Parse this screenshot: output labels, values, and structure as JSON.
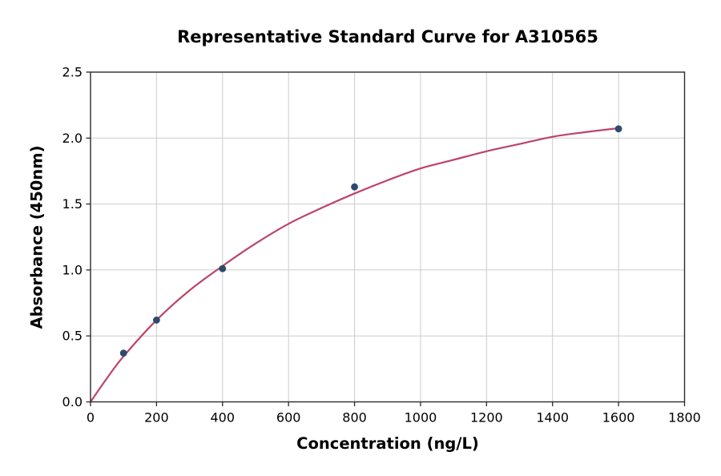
{
  "chart_data": {
    "type": "scatter",
    "title": "Representative Standard Curve for A310565",
    "xlabel": "Concentration (ng/L)",
    "ylabel": "Absorbance (450nm)",
    "xlim": [
      0,
      1800
    ],
    "ylim": [
      0,
      2.5
    ],
    "x_ticks": [
      0,
      200,
      400,
      600,
      800,
      1000,
      1200,
      1400,
      1600,
      1800
    ],
    "y_ticks": [
      0,
      0.5,
      1,
      1.5,
      2,
      2.5
    ],
    "y_tick_labels": [
      "0.0",
      "0.5",
      "1.0",
      "1.5",
      "2.0",
      "2.5"
    ],
    "grid": true,
    "legend": false,
    "series": [
      {
        "name": "standard-points",
        "type": "scatter",
        "color": "#2d4a6d",
        "points": [
          {
            "x": 100,
            "y": 0.37
          },
          {
            "x": 200,
            "y": 0.62
          },
          {
            "x": 400,
            "y": 1.01
          },
          {
            "x": 800,
            "y": 1.63
          },
          {
            "x": 1600,
            "y": 2.07
          }
        ]
      },
      {
        "name": "fit-curve",
        "type": "line",
        "color": "#bc4468",
        "points": [
          [
            0,
            0
          ],
          [
            50,
            0.18
          ],
          [
            100,
            0.345
          ],
          [
            200,
            0.62
          ],
          [
            300,
            0.845
          ],
          [
            400,
            1.03
          ],
          [
            500,
            1.2
          ],
          [
            600,
            1.35
          ],
          [
            700,
            1.47
          ],
          [
            800,
            1.58
          ],
          [
            900,
            1.68
          ],
          [
            1000,
            1.77
          ],
          [
            1100,
            1.835
          ],
          [
            1200,
            1.9
          ],
          [
            1300,
            1.955
          ],
          [
            1400,
            2.01
          ],
          [
            1500,
            2.045
          ],
          [
            1600,
            2.075
          ]
        ]
      }
    ],
    "colors": {
      "grid": "#cccccc",
      "spine": "#2b2b2b",
      "text": "#000000",
      "background": "#ffffff"
    }
  }
}
